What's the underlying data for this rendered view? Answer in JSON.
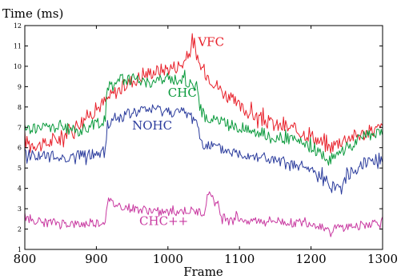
{
  "chart_data": {
    "type": "line",
    "title": "",
    "xlabel": "Frame",
    "ylabel": "Time (ms)",
    "xlim": [
      800,
      1300
    ],
    "ylim": [
      1,
      12
    ],
    "x_ticks": [
      800,
      900,
      1000,
      1100,
      1200,
      1300
    ],
    "y_ticks": [
      1,
      2,
      3,
      4,
      5,
      6,
      7,
      8,
      9,
      10,
      11,
      12
    ],
    "grid": false,
    "legend": "inline labels",
    "series": [
      {
        "name": "VFC",
        "color": "#e8202a",
        "x": [
          800,
          825,
          850,
          875,
          900,
          925,
          950,
          975,
          1000,
          1020,
          1030,
          1035,
          1040,
          1050,
          1075,
          1100,
          1125,
          1150,
          1175,
          1200,
          1225,
          1250,
          1275,
          1300
        ],
        "values": [
          6.3,
          6.1,
          6.5,
          7.2,
          7.9,
          8.7,
          9.3,
          9.7,
          9.9,
          10.1,
          10.6,
          11.5,
          10.3,
          9.8,
          8.8,
          8.0,
          7.5,
          7.1,
          6.9,
          6.6,
          6.0,
          6.5,
          6.7,
          7.0
        ]
      },
      {
        "name": "CHC",
        "color": "#0a9a3c",
        "x": [
          800,
          825,
          850,
          875,
          900,
          912,
          915,
          925,
          950,
          975,
          1000,
          1025,
          1040,
          1045,
          1050,
          1075,
          1100,
          1125,
          1150,
          1175,
          1200,
          1225,
          1250,
          1275,
          1300
        ],
        "values": [
          6.9,
          7.0,
          7.0,
          6.8,
          7.2,
          7.3,
          8.8,
          9.3,
          9.4,
          9.2,
          9.4,
          9.3,
          9.0,
          8.0,
          7.5,
          7.3,
          7.0,
          6.8,
          6.5,
          6.4,
          6.0,
          5.4,
          6.0,
          6.6,
          6.7
        ]
      },
      {
        "name": "NOHC",
        "color": "#2a3b9c",
        "x": [
          800,
          825,
          850,
          875,
          900,
          912,
          915,
          925,
          950,
          975,
          1000,
          1025,
          1040,
          1045,
          1050,
          1075,
          1100,
          1125,
          1150,
          1175,
          1200,
          1225,
          1240,
          1250,
          1275,
          1300
        ],
        "values": [
          5.7,
          5.6,
          5.5,
          5.6,
          5.7,
          5.7,
          7.1,
          7.4,
          7.7,
          7.9,
          7.8,
          7.7,
          7.4,
          6.4,
          6.2,
          5.9,
          5.7,
          5.6,
          5.3,
          5.1,
          4.9,
          4.3,
          4.0,
          4.6,
          5.3,
          5.5
        ]
      },
      {
        "name": "CHC++",
        "color": "#c838a0",
        "x": [
          800,
          825,
          850,
          875,
          900,
          912,
          915,
          925,
          950,
          975,
          1000,
          1025,
          1050,
          1058,
          1075,
          1100,
          1125,
          1150,
          1175,
          1200,
          1225,
          1250,
          1275,
          1300
        ],
        "values": [
          2.6,
          2.3,
          2.3,
          2.2,
          2.3,
          2.3,
          3.4,
          3.2,
          3.0,
          2.9,
          2.8,
          2.9,
          2.8,
          3.9,
          2.6,
          2.5,
          2.4,
          2.4,
          2.3,
          2.3,
          2.0,
          2.1,
          2.2,
          2.4
        ]
      }
    ]
  }
}
